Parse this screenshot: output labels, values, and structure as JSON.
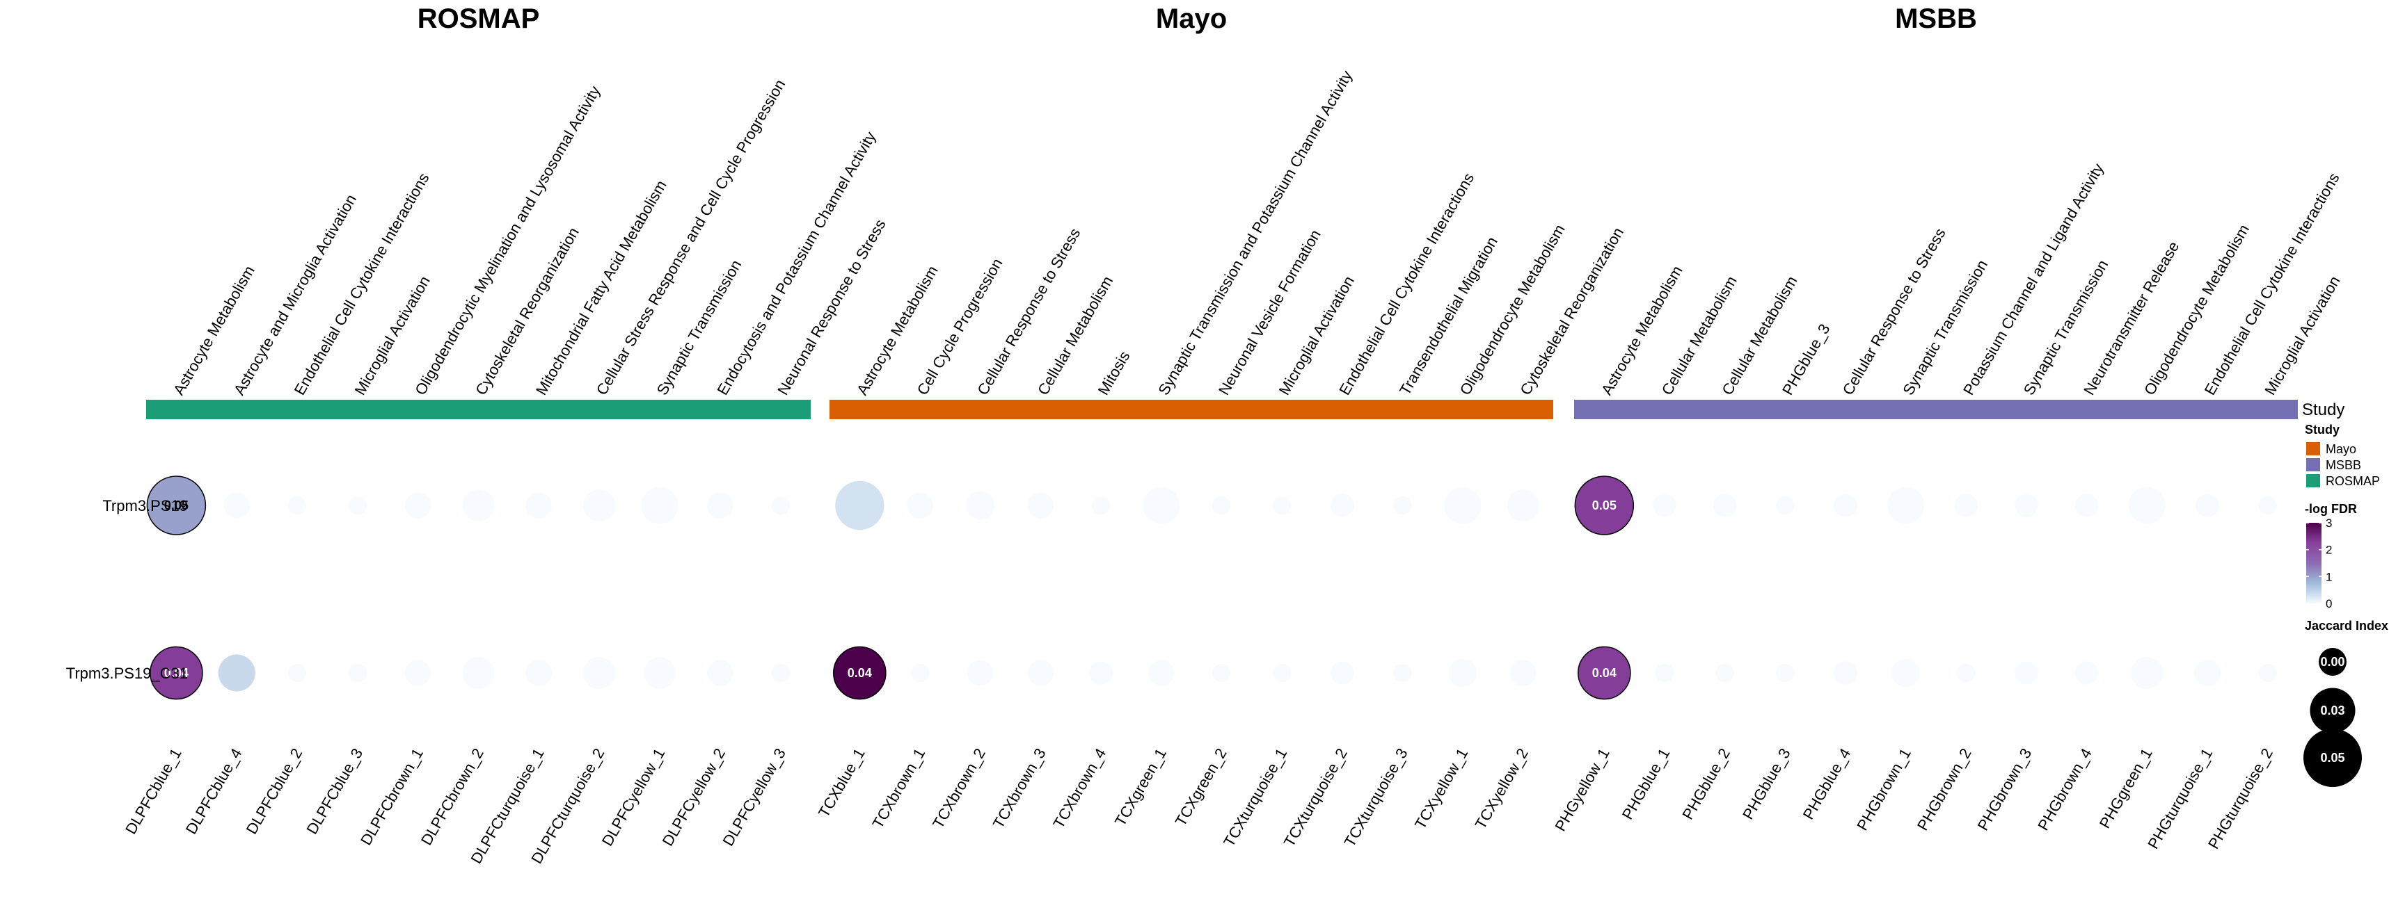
{
  "chart_data": {
    "type": "bubble-heatmap",
    "colors": {
      "ROSMAP": "#1B9E77",
      "Mayo": "#D95F02",
      "MSBB": "#7570B3"
    },
    "color_scale": {
      "stops": [
        "#F7FBFF",
        "#9EBCDA",
        "#8C6BB1",
        "#88419D",
        "#4D004B"
      ],
      "domain": [
        0,
        3
      ]
    },
    "rows": [
      "Trpm3.PS19",
      "Trpm3.PS19_C31"
    ],
    "study_axis_label": "Study",
    "panels": [
      {
        "title": "ROSMAP",
        "study": "ROSMAP",
        "modules": [
          "DLPFCblue_1",
          "DLPFCblue_4",
          "DLPFCblue_2",
          "DLPFCblue_3",
          "DLPFCbrown_1",
          "DLPFCbrown_2",
          "DLPFCturquoise_1",
          "DLPFCturquoise_2",
          "DLPFCyellow_1",
          "DLPFCyellow_2",
          "DLPFCyellow_3"
        ],
        "annotations": [
          "Astrocyte Metabolism",
          "Astrocyte and Microglia Activation",
          "Endothelial Cell Cytokine Interactions",
          "Microglial Activation",
          "Oligodendrocytic Myelination and Lysosomal Activity",
          "Cytoskeletal Reorganization",
          "Mitochondrial Fatty Acid Metabolism",
          "Cellular Stress Response and Cell Cycle Progression",
          "Synaptic Transmission",
          "Endocytosis and Potassium Channel Activity",
          "Neuronal Response to Stress"
        ],
        "jaccard": [
          [
            0.05,
            0.01,
            0.005,
            0.005,
            0.01,
            0.015,
            0.01,
            0.015,
            0.02,
            0.01,
            0.005
          ],
          [
            0.04,
            0.02,
            0.005,
            0.005,
            0.01,
            0.015,
            0.01,
            0.015,
            0.015,
            0.01,
            0.005
          ]
        ],
        "neg_log_fdr": [
          [
            1.0,
            0,
            0,
            0,
            0,
            0,
            0,
            0,
            0,
            0,
            0
          ],
          [
            2.3,
            0.4,
            0,
            0,
            0,
            0,
            0,
            0,
            0,
            0,
            0
          ]
        ],
        "labels": [
          [
            "0.05",
            "",
            "",
            "",
            "",
            "",
            "",
            "",
            "",
            "",
            ""
          ],
          [
            "0.04",
            "",
            "",
            "",
            "",
            "",
            "",
            "",
            "",
            "",
            ""
          ]
        ]
      },
      {
        "title": "Mayo",
        "study": "Mayo",
        "modules": [
          "TCXblue_1",
          "TCXbrown_1",
          "TCXbrown_2",
          "TCXbrown_3",
          "TCXbrown_4",
          "TCXgreen_1",
          "TCXgreen_2",
          "TCXturquoise_1",
          "TCXturquoise_2",
          "TCXturquoise_3",
          "TCXyellow_1",
          "TCXyellow_2"
        ],
        "annotations": [
          "Astrocyte Metabolism",
          "Cell Cycle Progression",
          "Cellular Response to Stress",
          "Cellular Metabolism",
          "Mitosis",
          "Synaptic Transmission and Potassium Channel Activity",
          "Neuronal Vesicle Formation",
          "Microglial Activation",
          "Endothelial Cell Cytokine Interactions",
          "Transendothelial Migration",
          "Oligodendrocyte Metabolism",
          "Cytoskeletal Reorganization"
        ],
        "jaccard": [
          [
            0.035,
            0.01,
            0.012,
            0.01,
            0.005,
            0.02,
            0.005,
            0.005,
            0.008,
            0.005,
            0.02,
            0.015
          ],
          [
            0.04,
            0.005,
            0.01,
            0.01,
            0.008,
            0.01,
            0.005,
            0.005,
            0.008,
            0.005,
            0.012,
            0.01
          ]
        ],
        "neg_log_fdr": [
          [
            0.3,
            0,
            0,
            0,
            0,
            0,
            0,
            0,
            0,
            0,
            0,
            0
          ],
          [
            3.0,
            0,
            0,
            0,
            0,
            0,
            0,
            0,
            0,
            0,
            0,
            0
          ]
        ],
        "labels": [
          [
            "",
            "",
            "",
            "",
            "",
            "",
            "",
            "",
            "",
            "",
            "",
            ""
          ],
          [
            "0.04",
            "",
            "",
            "",
            "",
            "",
            "",
            "",
            "",
            "",
            "",
            ""
          ]
        ]
      },
      {
        "title": "MSBB",
        "study": "MSBB",
        "modules": [
          "PHGyellow_1",
          "PHGblue_1",
          "PHGblue_2",
          "PHGblue_3",
          "PHGblue_4",
          "PHGbrown_1",
          "PHGbrown_2",
          "PHGbrown_3",
          "PHGbrown_4",
          "PHGgreen_1",
          "PHGturquoise_1",
          "PHGturquoise_2"
        ],
        "annotations": [
          "Astrocyte Metabolism",
          "Cellular Metabolism",
          "Cellular Metabolism",
          "PHGblue_3",
          "Cellular Response to Stress",
          "Synaptic Transmission",
          "Potassium Channel and Ligand Activity",
          "Synaptic Transmission",
          "Neurotransmitter Release",
          "Oligodendrocyte Metabolism",
          "Endothelial Cell Cytokine Interactions",
          "Microglial Activation"
        ],
        "jaccard": [
          [
            0.05,
            0.008,
            0.008,
            0.005,
            0.008,
            0.02,
            0.008,
            0.008,
            0.008,
            0.02,
            0.008,
            0.005
          ],
          [
            0.04,
            0.005,
            0.005,
            0.005,
            0.008,
            0.012,
            0.005,
            0.008,
            0.008,
            0.015,
            0.01,
            0.005
          ]
        ],
        "neg_log_fdr": [
          [
            2.3,
            0,
            0,
            0,
            0,
            0,
            0,
            0,
            0,
            0,
            0,
            0
          ],
          [
            2.3,
            0,
            0,
            0,
            0,
            0,
            0,
            0,
            0,
            0,
            0,
            0
          ]
        ],
        "labels": [
          [
            "0.05",
            "",
            "",
            "",
            "",
            "",
            "",
            "",
            "",
            "",
            "",
            ""
          ],
          [
            "0.04",
            "",
            "",
            "",
            "",
            "",
            "",
            "",
            "",
            "",
            "",
            ""
          ]
        ]
      }
    ],
    "legend": {
      "study": {
        "title": "Study",
        "items": [
          {
            "label": "Mayo",
            "color": "#D95F02"
          },
          {
            "label": "MSBB",
            "color": "#7570B3"
          },
          {
            "label": "ROSMAP",
            "color": "#1B9E77"
          }
        ]
      },
      "fdr": {
        "title": "-log FDR",
        "ticks": [
          "0",
          "1",
          "2",
          "3"
        ],
        "tick_values": [
          0,
          1,
          2,
          3
        ]
      },
      "jaccard": {
        "title": "Jaccard Index",
        "values": [
          0.0,
          0.03,
          0.05
        ],
        "labels": [
          "0.00",
          "0.03",
          "0.05"
        ]
      }
    }
  }
}
